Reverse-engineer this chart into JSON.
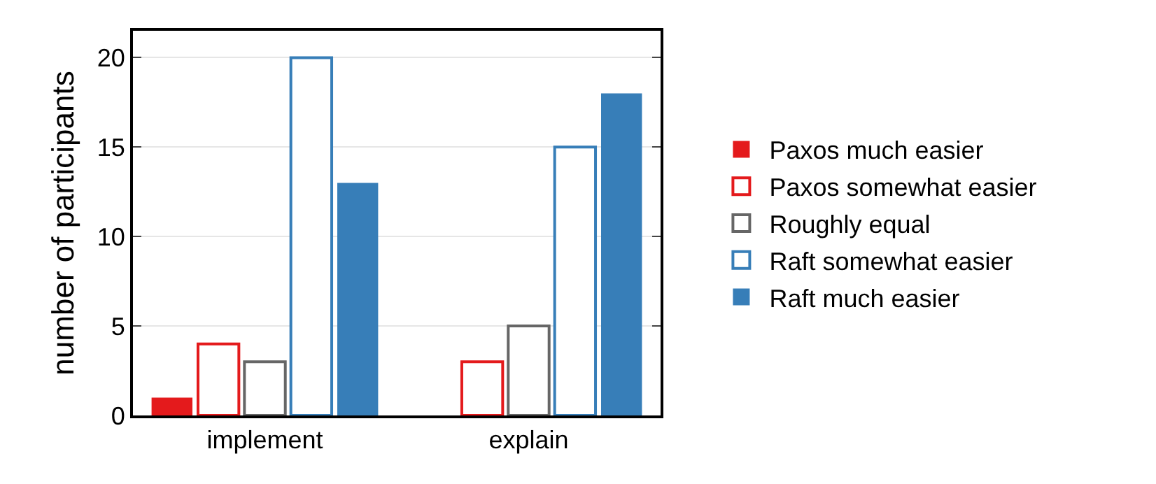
{
  "chart_data": {
    "type": "bar",
    "ylabel": "number of participants",
    "categories": [
      "implement",
      "explain"
    ],
    "series": [
      {
        "name": "Paxos much easier",
        "color": "#e41a1c",
        "values": [
          1,
          0
        ]
      },
      {
        "name": "Paxos somewhat easier",
        "color": "#e41a1c",
        "values": [
          4,
          3
        ]
      },
      {
        "name": "Roughly equal",
        "color": "#666666",
        "values": [
          3,
          5
        ]
      },
      {
        "name": "Raft somewhat easier",
        "color": "#377eb8",
        "values": [
          20,
          15
        ]
      },
      {
        "name": "Raft much easier",
        "color": "#377eb8",
        "values": [
          13,
          18
        ]
      }
    ],
    "ylim": [
      0,
      21.5
    ],
    "yticks": [
      0,
      5,
      10,
      15,
      20
    ],
    "grid": "y",
    "legend": "right"
  }
}
